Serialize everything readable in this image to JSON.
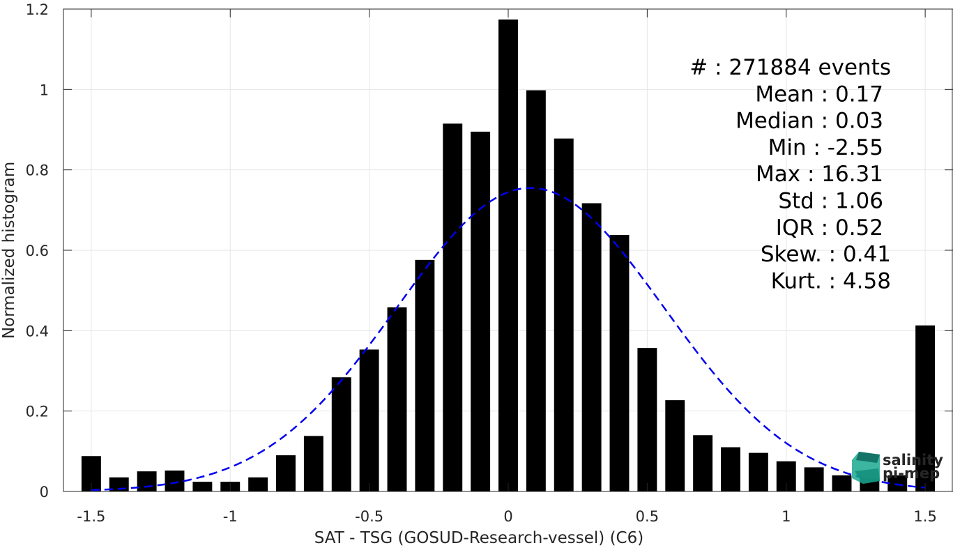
{
  "chart_data": {
    "type": "bar",
    "xlabel": "SAT - TSG (GOSUD-Research-vessel) (C6)",
    "ylabel": "Normalized histogram",
    "xlim": [
      -1.6,
      1.6
    ],
    "ylim": [
      0,
      1.2
    ],
    "grid": true,
    "x_ticks": [
      -1.5,
      -1,
      -0.5,
      0,
      0.5,
      1,
      1.5
    ],
    "x_tick_labels": [
      "-1.5",
      "-1",
      "-0.5",
      "0",
      "0.5",
      "1",
      "1.5"
    ],
    "y_ticks": [
      0,
      0.2,
      0.4,
      0.6,
      0.8,
      1,
      1.2
    ],
    "y_tick_labels": [
      "0",
      "0.2",
      "0.4",
      "0.6",
      "0.8",
      "1",
      "1.2"
    ],
    "bar_width": 0.07,
    "bar_color": "#000000",
    "x": [
      -1.5,
      -1.4,
      -1.3,
      -1.2,
      -1.1,
      -1.0,
      -0.9,
      -0.8,
      -0.7,
      -0.6,
      -0.5,
      -0.4,
      -0.3,
      -0.2,
      -0.1,
      0.0,
      0.1,
      0.2,
      0.3,
      0.4,
      0.5,
      0.6,
      0.7,
      0.8,
      0.9,
      1.0,
      1.1,
      1.2,
      1.3,
      1.4,
      1.5
    ],
    "values": [
      0.088,
      0.035,
      0.05,
      0.052,
      0.024,
      0.024,
      0.035,
      0.09,
      0.138,
      0.284,
      0.353,
      0.458,
      0.576,
      0.915,
      0.895,
      1.174,
      0.998,
      0.878,
      0.717,
      0.638,
      0.357,
      0.227,
      0.14,
      0.11,
      0.096,
      0.075,
      0.06,
      0.04,
      0.032,
      0.04,
      0.413
    ],
    "fit_curve": {
      "type": "gaussian",
      "color": "#0000ee",
      "style": "dashed",
      "peak": 0.755,
      "center": 0.08,
      "sigma": 0.48,
      "x_range": [
        -1.5,
        1.5
      ]
    },
    "annotations": [
      "#  : 271884 events",
      "Mean : 0.17",
      "Median : 0.03",
      "Min : -2.55",
      "Max : 16.31",
      "Std : 1.06",
      "IQR : 0.52",
      "Skew. : 0.41",
      "Kurt. : 4.58"
    ]
  },
  "logo": {
    "line1": "salinity",
    "line2": "pi-mep",
    "color_teal": "#1aa890",
    "color_dark": "#0f6d62"
  }
}
